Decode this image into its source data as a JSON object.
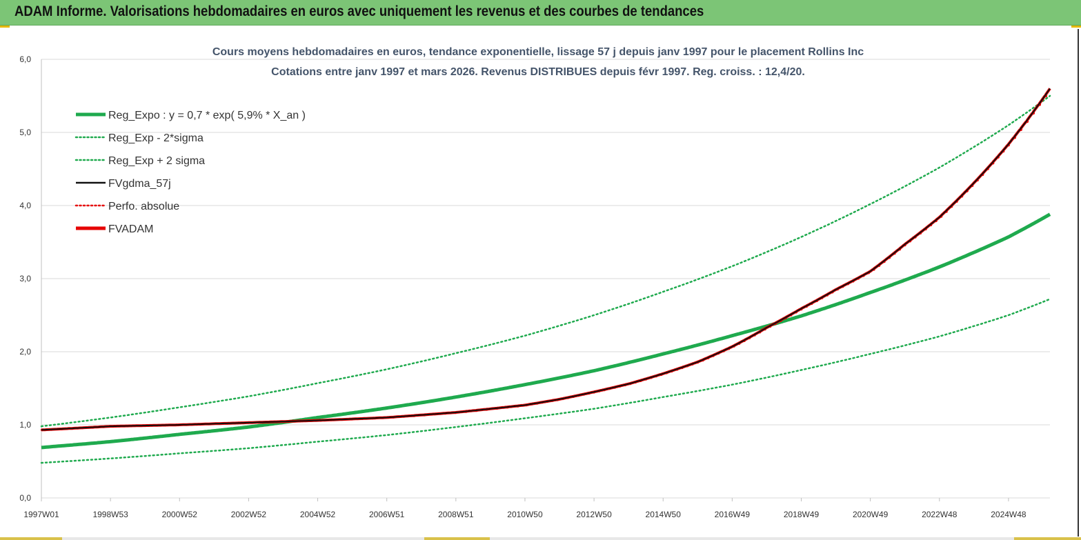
{
  "header": {
    "title": "ADAM Informe. Valorisations hebdomadaires en euros avec uniquement les revenus et des courbes de tendances"
  },
  "colors": {
    "green": "#1faa4e",
    "red": "#e60000",
    "black": "#111111",
    "grid": "#d9d9d9"
  },
  "chart_data": {
    "type": "line",
    "title": "Cours moyens hebdomadaires en euros, tendance exponentielle, lissage 57 j depuis janv 1997 pour le placement Rollins Inc",
    "subtitle": "Cotations entre janv 1997 et mars 2026. Revenus DISTRIBUES depuis févr 1997. Reg. croiss. : 12,4/20.",
    "xlabel": "",
    "ylabel": "",
    "ylim": [
      0,
      6
    ],
    "xlim": [
      1997.0,
      2026.2
    ],
    "y_ticks": [
      0,
      1,
      2,
      3,
      4,
      5,
      6
    ],
    "y_tick_labels": [
      "0,0",
      "1,0",
      "2,0",
      "3,0",
      "4,0",
      "5,0",
      "6,0"
    ],
    "x_tick_labels": [
      "1997W01",
      "1998W53",
      "2000W52",
      "2002W52",
      "2004W52",
      "2006W51",
      "2008W51",
      "2010W50",
      "2012W50",
      "2014W50",
      "2016W49",
      "2018W49",
      "2020W49",
      "2022W48",
      "2024W48"
    ],
    "x_tick_positions": [
      1997.0,
      1999.0,
      2001.0,
      2003.0,
      2005.0,
      2007.0,
      2009.0,
      2011.0,
      2013.0,
      2015.0,
      2017.0,
      2019.0,
      2021.0,
      2023.0,
      2025.0
    ],
    "grid": "horizontal",
    "legend_position": "top-left",
    "series": [
      {
        "name": "Reg_Expo : y = 0,7 * exp( 5,9% *  X_an )",
        "style": "solid-thick",
        "color": "#1faa4e",
        "x": [
          1997,
          1999,
          2001,
          2003,
          2005,
          2007,
          2009,
          2011,
          2013,
          2015,
          2017,
          2019,
          2021,
          2023,
          2025,
          2026.2
        ],
        "y": [
          0.69,
          0.77,
          0.87,
          0.97,
          1.1,
          1.23,
          1.38,
          1.55,
          1.74,
          1.97,
          2.22,
          2.49,
          2.81,
          3.16,
          3.57,
          3.88
        ]
      },
      {
        "name": "Reg_Exp - 2*sigma",
        "style": "dotted",
        "color": "#1faa4e",
        "x": [
          1997,
          1999,
          2001,
          2003,
          2005,
          2007,
          2009,
          2011,
          2013,
          2015,
          2017,
          2019,
          2021,
          2023,
          2025,
          2026.2
        ],
        "y": [
          0.48,
          0.54,
          0.61,
          0.68,
          0.77,
          0.86,
          0.97,
          1.09,
          1.22,
          1.38,
          1.55,
          1.75,
          1.97,
          2.21,
          2.5,
          2.72
        ]
      },
      {
        "name": "Reg_Exp + 2 sigma",
        "style": "dotted",
        "color": "#1faa4e",
        "x": [
          1997,
          1999,
          2001,
          2003,
          2005,
          2007,
          2009,
          2011,
          2013,
          2015,
          2017,
          2019,
          2021,
          2023,
          2025,
          2026.2
        ],
        "y": [
          0.98,
          1.1,
          1.24,
          1.39,
          1.57,
          1.76,
          1.98,
          2.22,
          2.5,
          2.82,
          3.17,
          3.57,
          4.02,
          4.52,
          5.1,
          5.5
        ]
      },
      {
        "name": "FVgdma_57j",
        "style": "solid",
        "color": "#111111",
        "x": [
          1997,
          1999,
          2001,
          2003,
          2005,
          2007,
          2009,
          2011,
          2012,
          2013,
          2014,
          2015,
          2016,
          2017,
          2018,
          2019,
          2020,
          2021,
          2022,
          2023,
          2024,
          2025,
          2026.2
        ],
        "y": [
          0.93,
          0.98,
          1.0,
          1.03,
          1.06,
          1.1,
          1.17,
          1.27,
          1.35,
          1.45,
          1.56,
          1.7,
          1.86,
          2.07,
          2.33,
          2.59,
          2.85,
          3.1,
          3.47,
          3.84,
          4.31,
          4.84,
          5.6
        ]
      },
      {
        "name": "Perfo. absolue",
        "style": "dotted",
        "color": "#e60000",
        "x": [
          1997,
          1999,
          2001,
          2003,
          2005,
          2007,
          2009,
          2011,
          2012,
          2013,
          2014,
          2015,
          2016,
          2017,
          2018,
          2019,
          2020,
          2021,
          2022,
          2023,
          2024,
          2025,
          2026.2
        ],
        "y": [
          0.93,
          0.98,
          1.0,
          1.03,
          1.06,
          1.1,
          1.17,
          1.27,
          1.35,
          1.45,
          1.56,
          1.7,
          1.86,
          2.07,
          2.33,
          2.59,
          2.85,
          3.1,
          3.47,
          3.84,
          4.31,
          4.84,
          5.6
        ]
      },
      {
        "name": "FVADAM",
        "style": "solid-thick-stepped",
        "color": "#e60000",
        "x": [
          1997,
          1999,
          2001,
          2003,
          2005,
          2007,
          2009,
          2011,
          2012,
          2013,
          2014,
          2015,
          2016,
          2017,
          2018,
          2019,
          2020,
          2021,
          2022,
          2023,
          2024,
          2025,
          2026.2
        ],
        "y": [
          0.93,
          0.98,
          1.0,
          1.03,
          1.06,
          1.1,
          1.17,
          1.27,
          1.35,
          1.45,
          1.56,
          1.7,
          1.86,
          2.07,
          2.33,
          2.59,
          2.85,
          3.1,
          3.47,
          3.84,
          4.31,
          4.84,
          5.6
        ]
      }
    ]
  }
}
